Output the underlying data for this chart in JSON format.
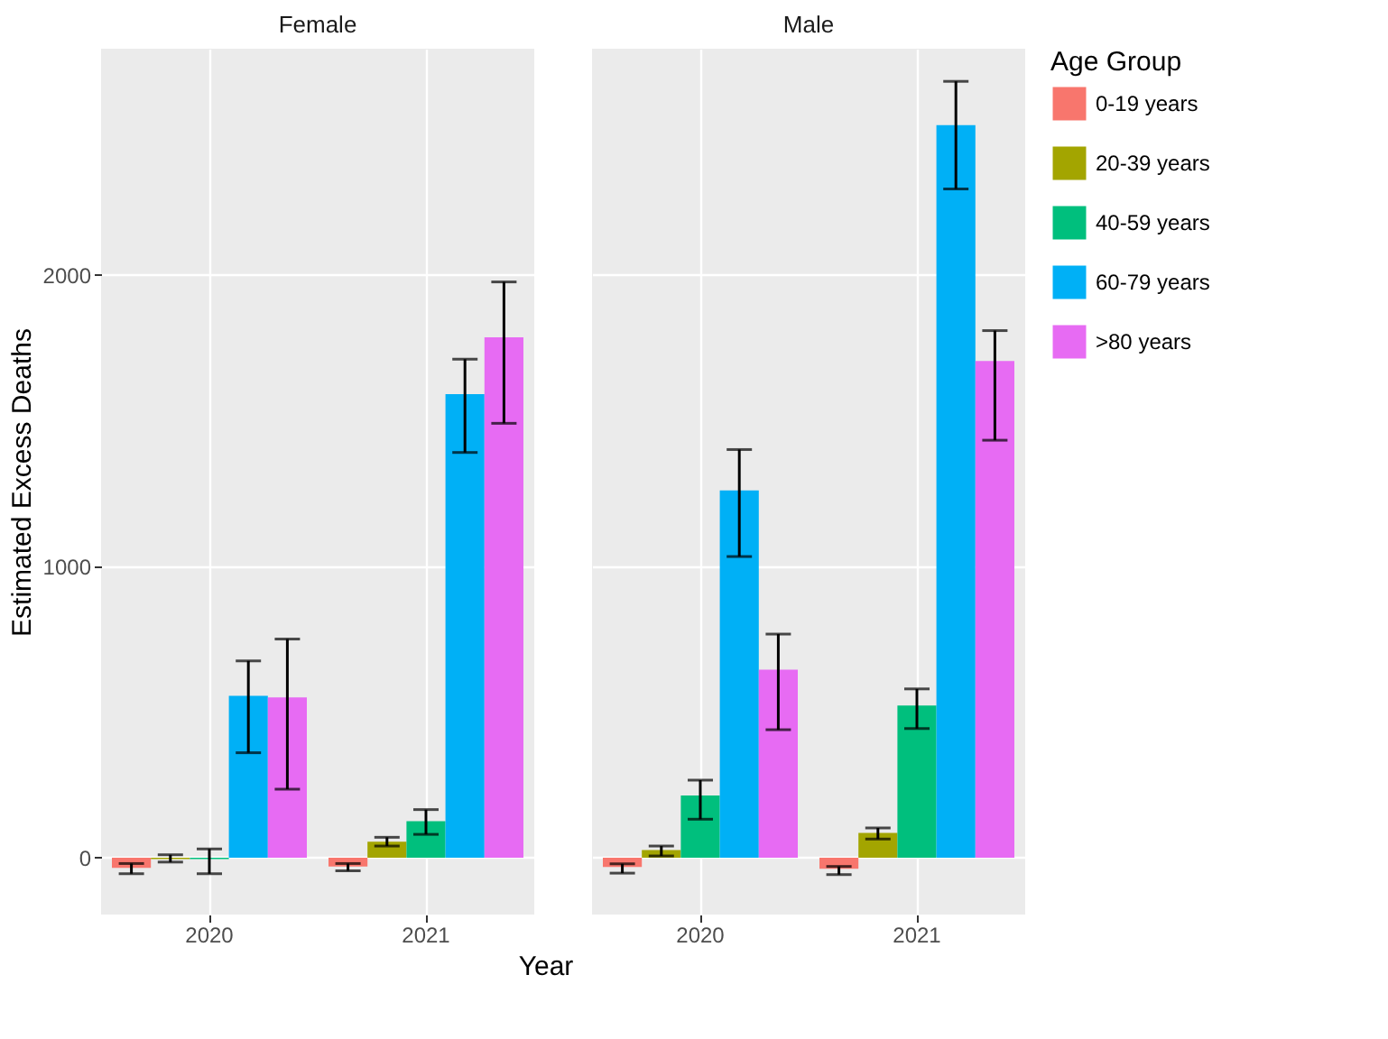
{
  "chart_data": [
    {
      "type": "bar",
      "title": "Female",
      "xlabel": "Year",
      "ylabel": "Estimated Excess Deaths",
      "categories": [
        "2020",
        "2021"
      ],
      "ylim": [
        -195,
        2775
      ],
      "yticks": [
        0,
        1000,
        2000
      ],
      "grid": true,
      "series": [
        {
          "color": "#f8766d",
          "values": [
            -35,
            -30
          ],
          "errors": [
            [
              -55,
              -20
            ],
            [
              -45,
              -20
            ]
          ]
        },
        {
          "color": "#a3a500",
          "values": [
            -5,
            55
          ],
          "errors": [
            [
              -15,
              10
            ],
            [
              40,
              70
            ]
          ]
        },
        {
          "color": "#00bf7d",
          "values": [
            -5,
            125
          ],
          "errors": [
            [
              -55,
              30
            ],
            [
              80,
              165
            ]
          ]
        },
        {
          "color": "#00b0f6",
          "values": [
            555,
            1590
          ],
          "errors": [
            [
              360,
              675
            ],
            [
              1390,
              1710
            ]
          ]
        },
        {
          "color": "#e76bf3",
          "values": [
            550,
            1785
          ],
          "errors": [
            [
              235,
              750
            ],
            [
              1490,
              1975
            ]
          ]
        }
      ]
    },
    {
      "type": "bar",
      "title": "Male",
      "legend_title": "Age Group",
      "categories": [
        "2020",
        "2021"
      ],
      "ylim": [
        -195,
        2775
      ],
      "yticks": [
        0,
        1000,
        2000
      ],
      "grid": true,
      "legend": "right",
      "tick_labels": "x",
      "series": [
        {
          "name": "0-19 years",
          "color": "#f8766d",
          "values": [
            -32,
            -38
          ],
          "errors": [
            [
              -53,
              -21
            ],
            [
              -58,
              -30
            ]
          ]
        },
        {
          "name": "20-39 years",
          "color": "#a3a500",
          "values": [
            26,
            85
          ],
          "errors": [
            [
              6,
              40
            ],
            [
              64,
              102
            ]
          ]
        },
        {
          "name": "40-59 years",
          "color": "#00bf7d",
          "values": [
            213,
            522
          ],
          "errors": [
            [
              132,
              266
            ],
            [
              443,
              579
            ]
          ]
        },
        {
          "name": "60-79 years",
          "color": "#00b0f6",
          "values": [
            1260,
            2513
          ],
          "errors": [
            [
              1033,
              1400
            ],
            [
              2294,
              2663
            ]
          ]
        },
        {
          "name": ">80 years",
          "color": "#e76bf3",
          "values": [
            645,
            1704
          ],
          "errors": [
            [
              439,
              767
            ],
            [
              1432,
              1808
            ]
          ]
        }
      ]
    }
  ]
}
